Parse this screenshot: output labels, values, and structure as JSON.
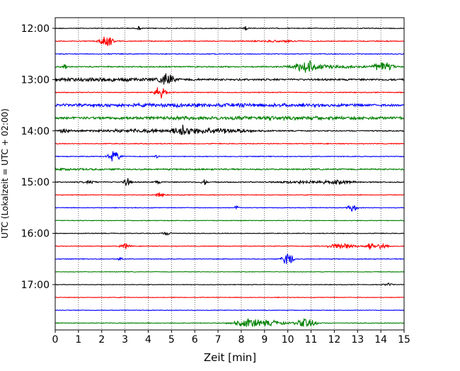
{
  "chart_data": {
    "type": "line",
    "title": "",
    "xlabel": "Zeit  [min]",
    "ylabel": "UTC (Lokalzeit = UTC + 02:00)",
    "xlim": [
      0,
      15
    ],
    "x_ticks": [
      "0",
      "1",
      "2",
      "3",
      "4",
      "5",
      "6",
      "7",
      "8",
      "9",
      "10",
      "11",
      "12",
      "13",
      "14",
      "15"
    ],
    "grid": "vertical-dotted",
    "legend": "none",
    "trace_interval_minutes": 15,
    "trace_colors": [
      "#000000",
      "#ff0000",
      "#0000ff",
      "#008000"
    ],
    "hour_labels": [
      {
        "label": "12:00",
        "trace": 0
      },
      {
        "label": "13:00",
        "trace": 4
      },
      {
        "label": "14:00",
        "trace": 8
      },
      {
        "label": "15:00",
        "trace": 12
      },
      {
        "label": "16:00",
        "trace": 16
      },
      {
        "label": "17:00",
        "trace": 20
      }
    ],
    "series": [
      {
        "start": "12:00",
        "baseline": 0.1,
        "bursts": [
          [
            3.6,
            0.08,
            0.45
          ],
          [
            8.2,
            0.08,
            0.6
          ]
        ]
      },
      {
        "start": "12:15",
        "baseline": 0.1,
        "bursts": [
          [
            2.2,
            0.25,
            1.6
          ],
          [
            9.5,
            1.0,
            0.15
          ]
        ]
      },
      {
        "start": "12:30",
        "baseline": 0.1,
        "bursts": []
      },
      {
        "start": "12:45",
        "baseline": 0.14,
        "bursts": [
          [
            0.4,
            0.1,
            0.5
          ],
          [
            10.8,
            0.4,
            1.4
          ],
          [
            11.5,
            1.5,
            0.3
          ],
          [
            14.1,
            0.4,
            1.0
          ]
        ]
      },
      {
        "start": "13:00",
        "baseline": 0.22,
        "bursts": [
          [
            1.5,
            3.0,
            0.25
          ],
          [
            4.8,
            0.25,
            1.6
          ]
        ]
      },
      {
        "start": "13:15",
        "baseline": 0.1,
        "bursts": [
          [
            4.5,
            0.25,
            1.3
          ]
        ]
      },
      {
        "start": "13:30",
        "baseline": 0.15,
        "bursts": [
          [
            6.5,
            8.0,
            0.3
          ]
        ]
      },
      {
        "start": "13:45",
        "baseline": 0.24,
        "bursts": [
          [
            9.0,
            6.0,
            0.2
          ]
        ]
      },
      {
        "start": "14:00",
        "baseline": 0.12,
        "bursts": [
          [
            0.4,
            0.2,
            0.5
          ],
          [
            3.5,
            2.0,
            0.3
          ],
          [
            5.5,
            0.3,
            1.1
          ],
          [
            6.8,
            1.5,
            0.6
          ]
        ]
      },
      {
        "start": "14:15",
        "baseline": 0.1,
        "bursts": []
      },
      {
        "start": "14:30",
        "baseline": 0.1,
        "bursts": [
          [
            2.55,
            0.25,
            1.2
          ],
          [
            4.4,
            0.1,
            0.4
          ]
        ]
      },
      {
        "start": "14:45",
        "baseline": 0.16,
        "bursts": [
          [
            0.5,
            1.5,
            0.1
          ]
        ]
      },
      {
        "start": "15:00",
        "baseline": 0.12,
        "bursts": [
          [
            1.5,
            0.3,
            0.3
          ],
          [
            3.1,
            0.15,
            1.0
          ],
          [
            4.4,
            0.1,
            0.4
          ],
          [
            6.4,
            0.1,
            0.7
          ],
          [
            10.9,
            1.2,
            0.3
          ],
          [
            12.3,
            0.5,
            0.3
          ]
        ]
      },
      {
        "start": "15:15",
        "baseline": 0.08,
        "bursts": [
          [
            4.5,
            0.15,
            0.6
          ]
        ]
      },
      {
        "start": "15:30",
        "baseline": 0.08,
        "bursts": [
          [
            7.8,
            0.1,
            0.4
          ],
          [
            12.8,
            0.2,
            0.8
          ]
        ]
      },
      {
        "start": "15:45",
        "baseline": 0.08,
        "bursts": []
      },
      {
        "start": "16:00",
        "baseline": 0.08,
        "bursts": [
          [
            4.8,
            0.2,
            0.3
          ]
        ]
      },
      {
        "start": "16:15",
        "baseline": 0.08,
        "bursts": [
          [
            3.0,
            0.2,
            0.6
          ],
          [
            12.3,
            0.6,
            0.7
          ],
          [
            13.6,
            0.2,
            0.9
          ],
          [
            14.1,
            0.2,
            0.7
          ]
        ]
      },
      {
        "start": "16:30",
        "baseline": 0.08,
        "bursts": [
          [
            2.8,
            0.1,
            0.4
          ],
          [
            10.0,
            0.2,
            1.8
          ]
        ]
      },
      {
        "start": "16:45",
        "baseline": 0.07,
        "bursts": []
      },
      {
        "start": "17:00",
        "baseline": 0.07,
        "bursts": [
          [
            14.3,
            0.2,
            0.3
          ]
        ]
      },
      {
        "start": "17:15",
        "baseline": 0.07,
        "bursts": []
      },
      {
        "start": "17:30",
        "baseline": 0.07,
        "bursts": []
      },
      {
        "start": "17:45",
        "baseline": 0.08,
        "bursts": [
          [
            8.3,
            0.6,
            0.9
          ],
          [
            9.3,
            0.6,
            0.5
          ],
          [
            10.8,
            0.4,
            1.1
          ]
        ]
      }
    ]
  }
}
